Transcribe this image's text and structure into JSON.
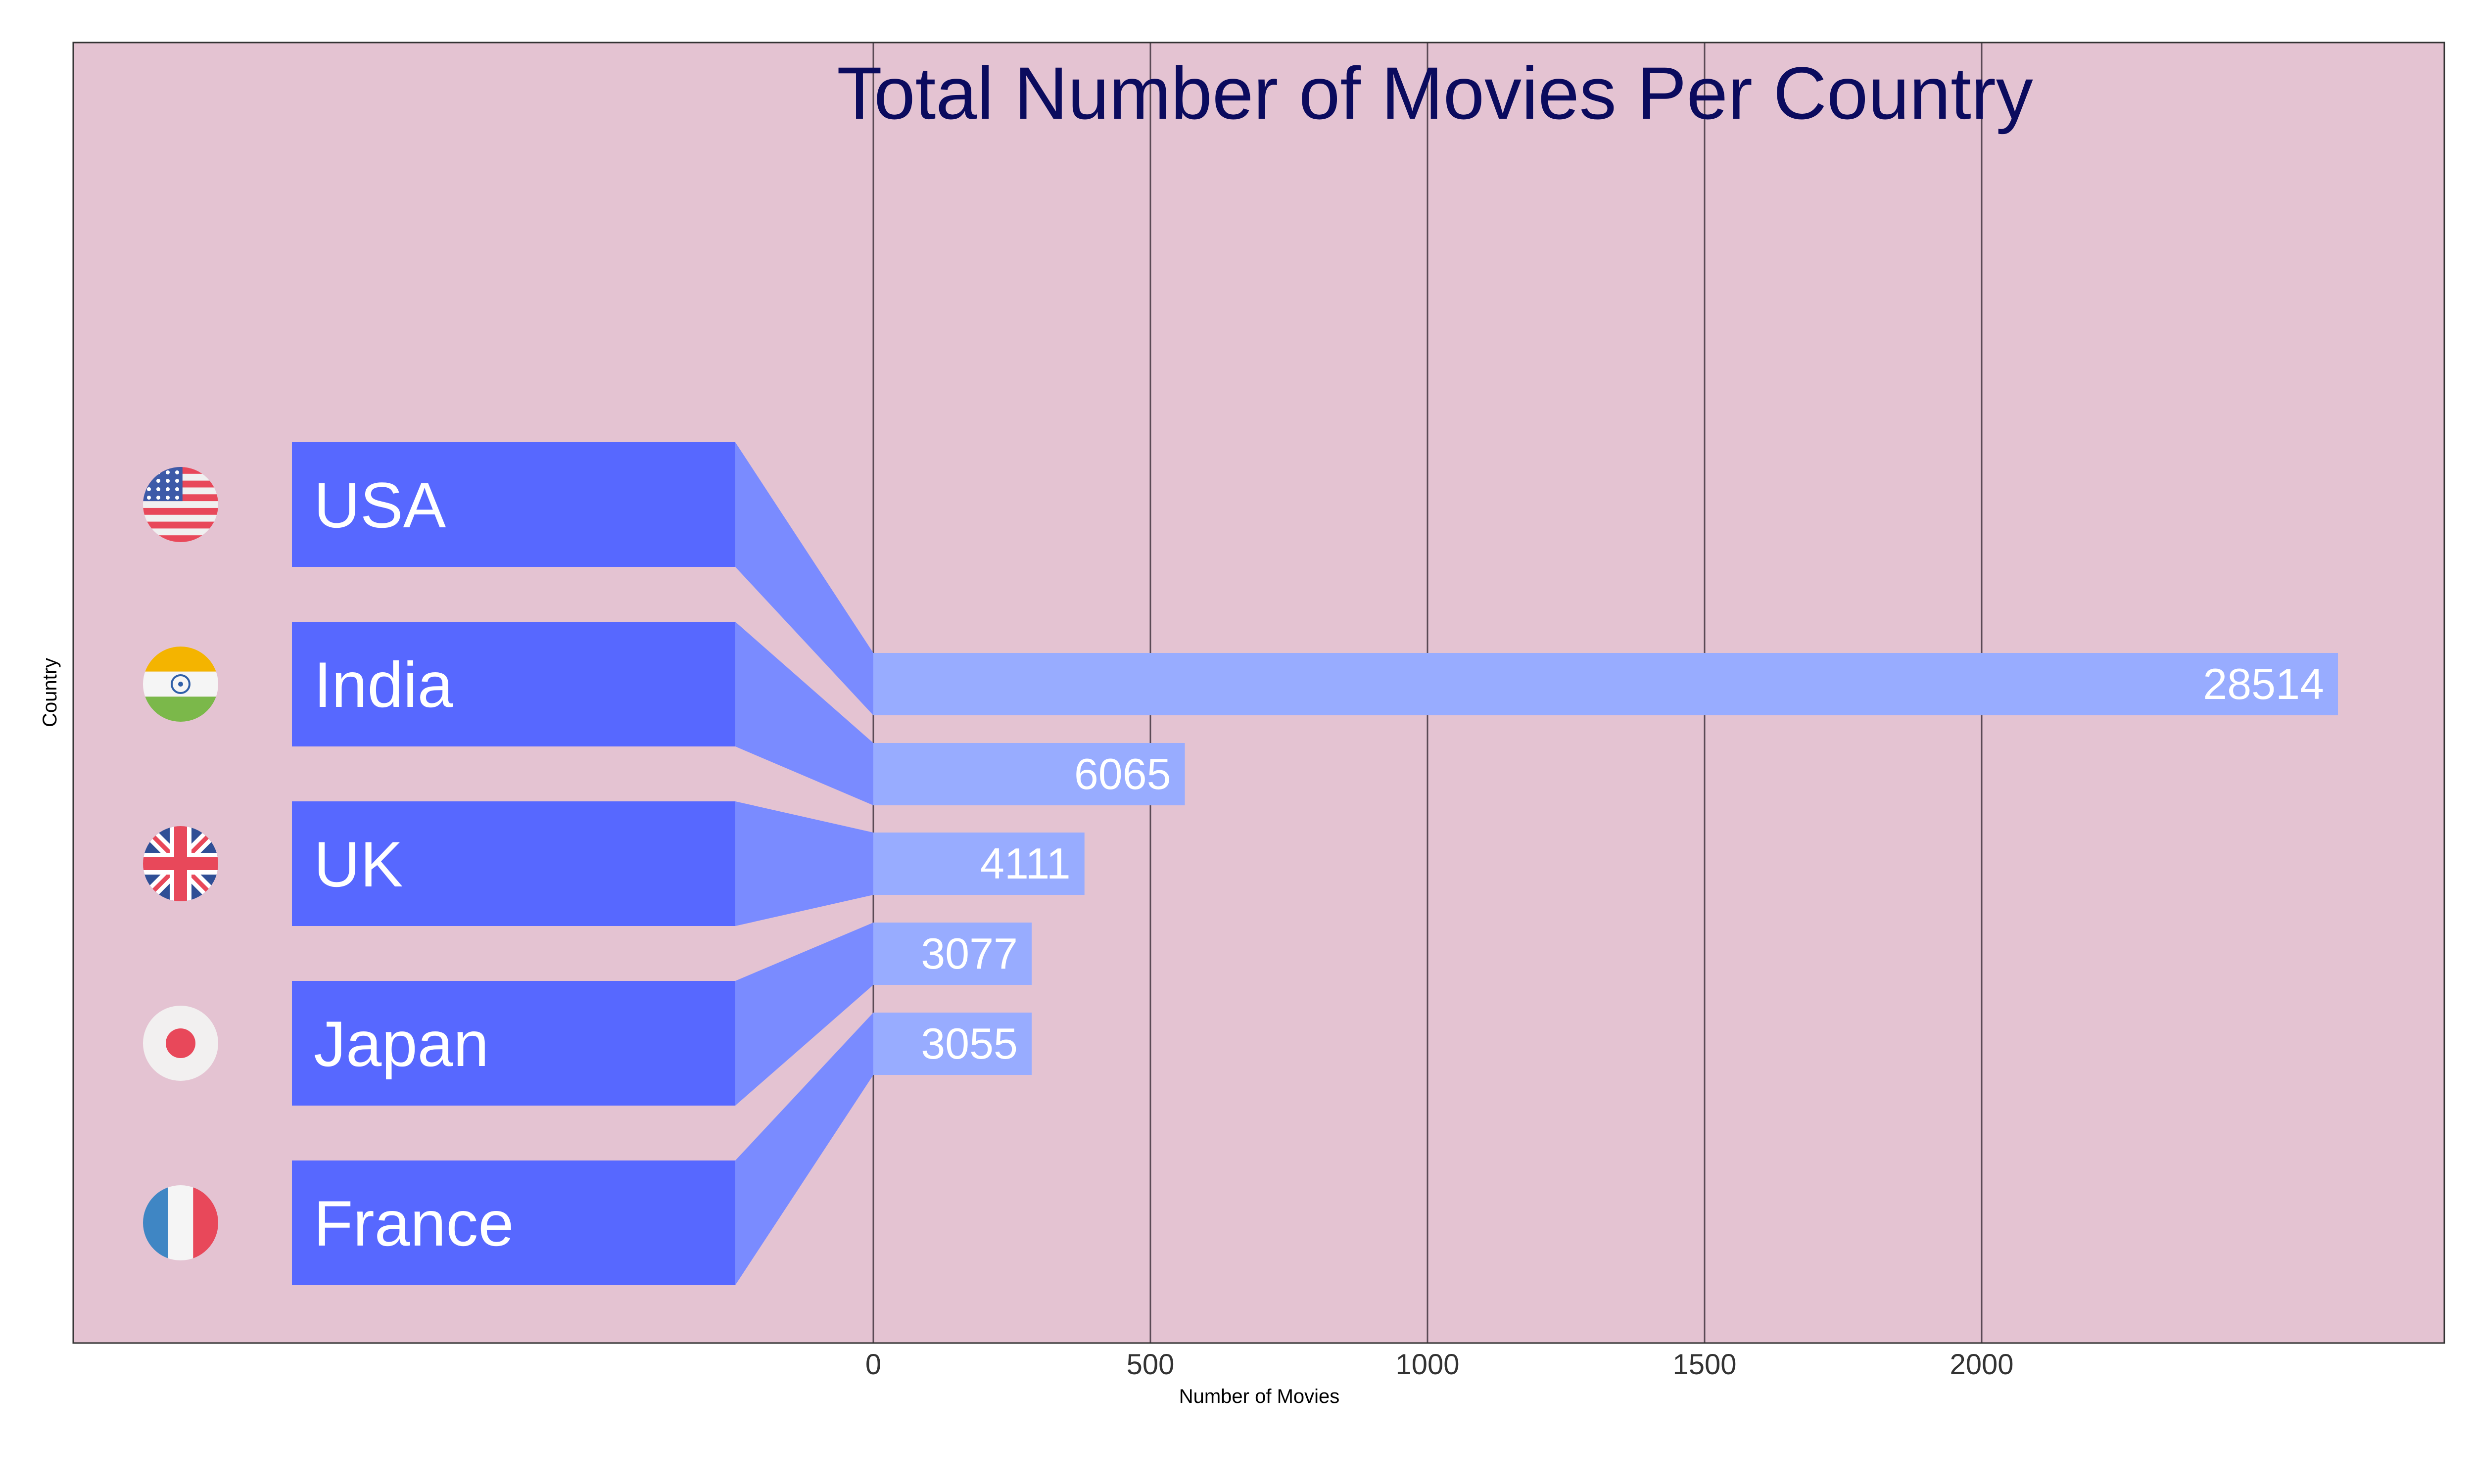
{
  "chart_data": {
    "type": "bar",
    "orientation": "horizontal",
    "title": "Total Number of Movies Per Country",
    "xlabel": "Number of Movies",
    "ylabel": "Country",
    "categories": [
      "USA",
      "India",
      "UK",
      "Japan",
      "France"
    ],
    "values": [
      28514,
      6065,
      4111,
      3077,
      3055
    ],
    "data_labels": [
      "28514",
      "6065",
      "4111",
      "3077",
      "3055"
    ],
    "x_ticks": [
      "0",
      "500",
      "1000",
      "1500",
      "2000"
    ],
    "grid": "vertical",
    "legend": "none",
    "flag_icons": [
      "usa-flag-icon",
      "india-flag-icon",
      "uk-flag-icon",
      "japan-flag-icon",
      "france-flag-icon"
    ]
  },
  "colors": {
    "plot_background": "#e4c3d2",
    "title": "#0b0b5e",
    "label_box": "#5768ff",
    "connector": "#7a8bff",
    "bar": "#98acff",
    "value_text": "#ffffff",
    "grid": "#5a4a55",
    "axis_text": "#333333",
    "frame": "#333333"
  }
}
